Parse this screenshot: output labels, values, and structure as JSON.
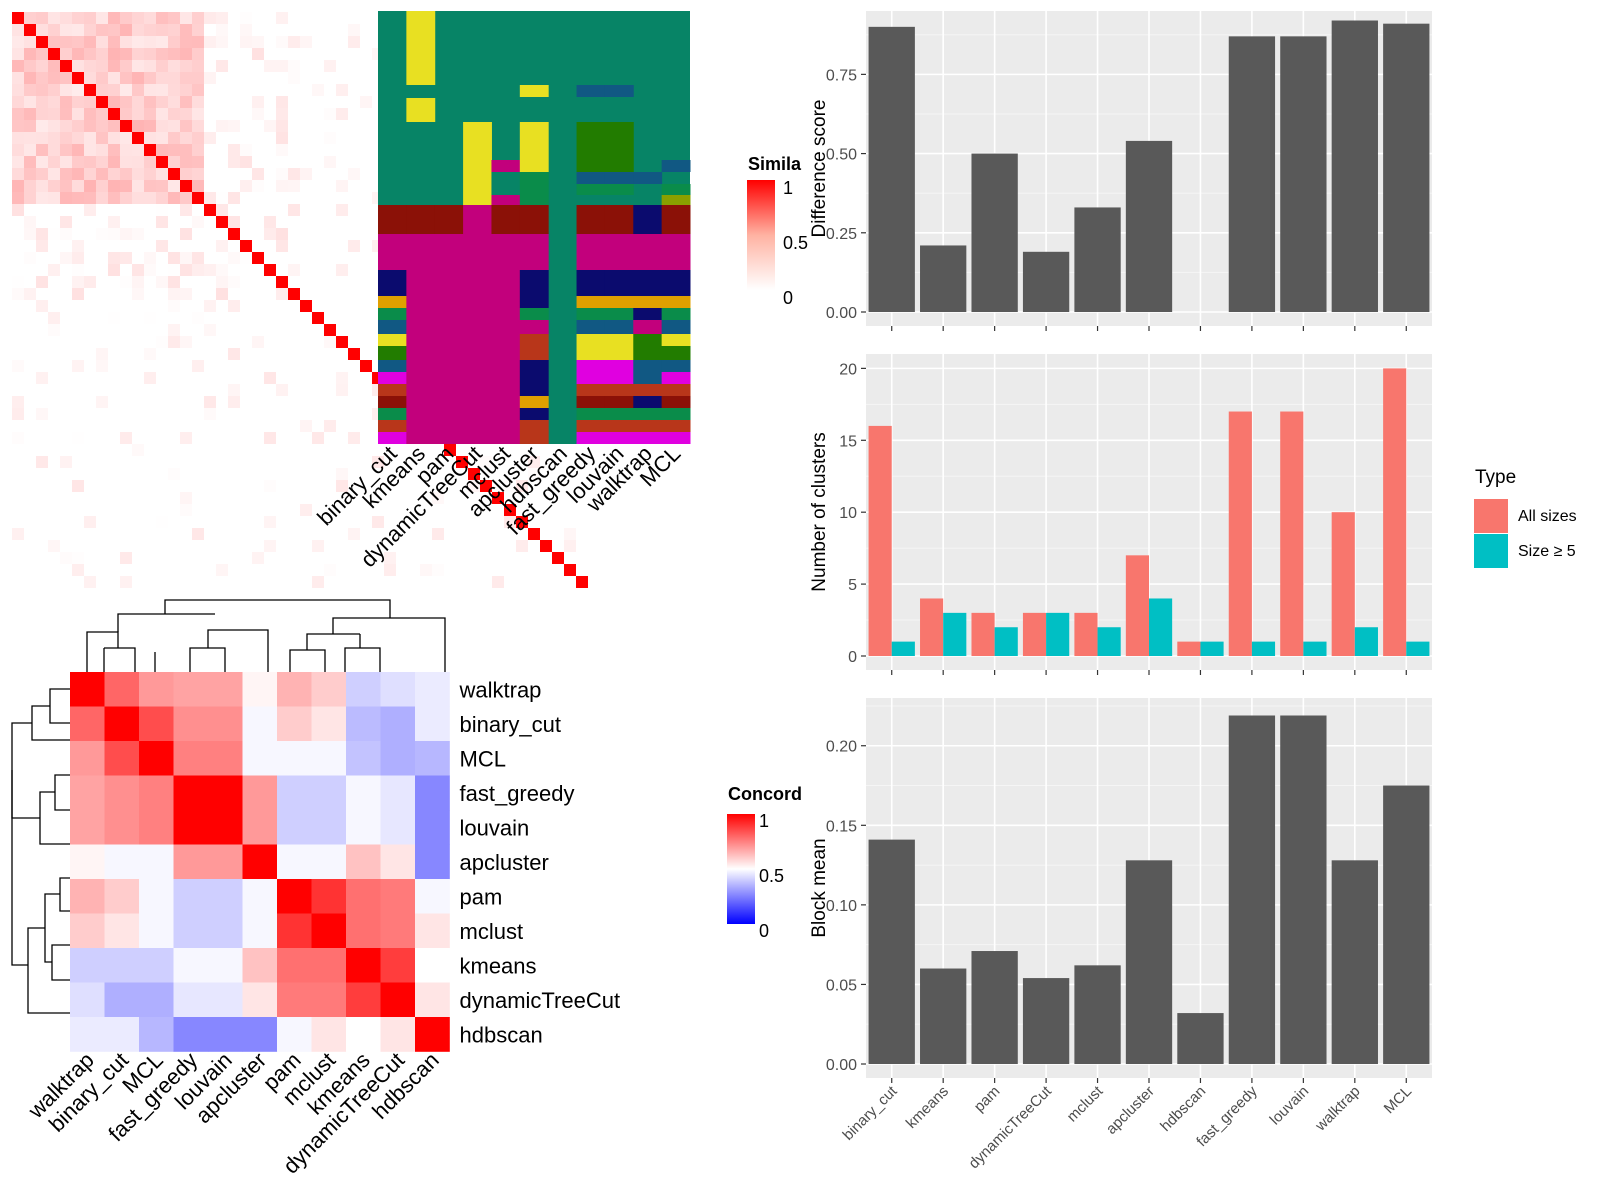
{
  "similarity_heatmap": {
    "legend_title": "Simila",
    "legend_ticks": [
      "1",
      "0.5",
      "0"
    ]
  },
  "membership_heatmap": {
    "methods": [
      "binary_cut",
      "kmeans",
      "pam",
      "dynamicTreeCut",
      "mclust",
      "apcluster",
      "hdbscan",
      "fast_greedy",
      "louvain",
      "walktrap",
      "MCL"
    ]
  },
  "concordance_heatmap": {
    "legend_title": "Concord",
    "legend_ticks": [
      "1",
      "0.5",
      "0"
    ],
    "row_labels": [
      "walktrap",
      "binary_cut",
      "MCL",
      "fast_greedy",
      "louvain",
      "apcluster",
      "pam",
      "mclust",
      "kmeans",
      "dynamicTreeCut",
      "hdbscan"
    ],
    "col_labels": [
      "walktrap",
      "binary_cut",
      "MCL",
      "fast_greedy",
      "louvain",
      "apcluster",
      "pam",
      "mclust",
      "kmeans",
      "dynamicTreeCut",
      "hdbscan"
    ]
  },
  "chart_data": [
    {
      "type": "bar",
      "categories": [
        "binary_cut",
        "kmeans",
        "pam",
        "dynamicTreeCut",
        "mclust",
        "apcluster",
        "hdbscan",
        "fast_greedy",
        "louvain",
        "walktrap",
        "MCL"
      ],
      "values": [
        0.9,
        0.21,
        0.5,
        0.19,
        0.33,
        0.54,
        0,
        0.87,
        0.87,
        0.92,
        0.91
      ],
      "ylabel": "Difference score",
      "ylim": [
        0,
        0.95
      ],
      "yticks": [
        "0.00",
        "0.25",
        "0.50",
        "0.75"
      ],
      "grid": true
    },
    {
      "type": "bar",
      "categories": [
        "binary_cut",
        "kmeans",
        "pam",
        "dynamicTreeCut",
        "mclust",
        "apcluster",
        "hdbscan",
        "fast_greedy",
        "louvain",
        "walktrap",
        "MCL"
      ],
      "series": [
        {
          "name": "All sizes",
          "values": [
            16,
            4,
            3,
            3,
            3,
            7,
            1,
            17,
            17,
            10,
            20
          ],
          "color": "#F8766D"
        },
        {
          "name": "Size ≥ 5",
          "values": [
            1,
            3,
            2,
            3,
            2,
            4,
            1,
            1,
            1,
            2,
            1
          ],
          "color": "#00BFC4"
        }
      ],
      "ylabel": "Number of clusters",
      "ylim": [
        0,
        21
      ],
      "yticks": [
        "0",
        "5",
        "10",
        "15",
        "20"
      ],
      "legend_title": "Type",
      "legend": "right",
      "grid": true
    },
    {
      "type": "bar",
      "categories": [
        "binary_cut",
        "kmeans",
        "pam",
        "dynamicTreeCut",
        "mclust",
        "apcluster",
        "hdbscan",
        "fast_greedy",
        "louvain",
        "walktrap",
        "MCL"
      ],
      "values": [
        0.141,
        0.06,
        0.071,
        0.054,
        0.062,
        0.128,
        0.032,
        0.219,
        0.219,
        0.128,
        0.175
      ],
      "ylabel": "Block mean",
      "ylim": [
        0,
        0.23
      ],
      "yticks": [
        "0.00",
        "0.05",
        "0.10",
        "0.15",
        "0.20"
      ],
      "grid": true
    }
  ]
}
